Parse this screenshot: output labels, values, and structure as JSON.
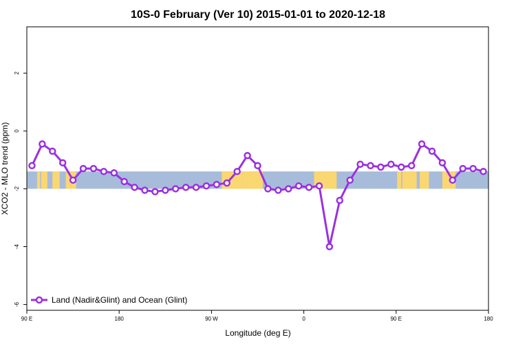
{
  "chart_data": {
    "type": "line",
    "title": "10S-0 February (Ver 10)   2015-01-01 to 2020-12-18",
    "xlabel": "Longitude (deg E)",
    "ylabel": "XCO2 - MLO trend (ppm)",
    "xlim": [
      90,
      540
    ],
    "ylim": [
      -6.2,
      3.6
    ],
    "x_ticks": [
      {
        "value": 90,
        "label": "90 E"
      },
      {
        "value": 180,
        "label": "180"
      },
      {
        "value": 270,
        "label": "90 W"
      },
      {
        "value": 360,
        "label": "0"
      },
      {
        "value": 450,
        "label": "90 E"
      },
      {
        "value": 540,
        "label": "180"
      }
    ],
    "y_ticks": [
      {
        "value": 2,
        "label": "2"
      },
      {
        "value": 0,
        "label": "0"
      },
      {
        "value": -2,
        "label": "-2"
      },
      {
        "value": -4,
        "label": "-4"
      },
      {
        "value": -6,
        "label": "-6"
      }
    ],
    "legend": {
      "position": "bottom-left",
      "entries": [
        "Land (Nadir&Glint) and Ocean (Glint)"
      ]
    },
    "band": {
      "y_range": [
        -2.0,
        -1.4
      ],
      "ocean_color": "#a7bcdb",
      "land_color": "#fbd772"
    },
    "land_segments": [
      [
        100,
        103
      ],
      [
        104,
        110
      ],
      [
        115,
        122
      ],
      [
        128,
        138
      ],
      [
        280,
        300
      ],
      [
        300,
        320
      ],
      [
        370,
        392
      ],
      [
        451,
        455
      ],
      [
        456,
        470
      ],
      [
        473,
        482
      ],
      [
        495,
        508
      ]
    ],
    "series": [
      {
        "name": "Land (Nadir&Glint) and Ocean (Glint)",
        "color": "#9b30e0",
        "x": [
          95,
          105,
          115,
          125,
          135,
          145,
          155,
          165,
          175,
          185,
          195,
          205,
          215,
          225,
          235,
          245,
          255,
          265,
          275,
          285,
          295,
          305,
          315,
          325,
          335,
          345,
          355,
          365,
          375,
          385,
          395,
          405,
          415,
          425,
          435,
          445,
          455,
          465,
          475,
          485,
          495,
          505,
          515,
          525,
          535
        ],
        "y": [
          -1.2,
          -0.45,
          -0.7,
          -1.1,
          -1.7,
          -1.3,
          -1.3,
          -1.4,
          -1.45,
          -1.75,
          -1.95,
          -2.05,
          -2.1,
          -2.05,
          -2.0,
          -1.95,
          -1.95,
          -1.9,
          -1.85,
          -1.8,
          -1.4,
          -0.85,
          -1.2,
          -2.0,
          -2.05,
          -2.0,
          -1.9,
          -1.95,
          -1.9,
          -4.0,
          -2.4,
          -1.7,
          -1.15,
          -1.2,
          -1.25,
          -1.15,
          -1.25,
          -1.2,
          -0.45,
          -0.7,
          -1.1,
          -1.7,
          -1.3,
          -1.3,
          -1.4
        ]
      }
    ]
  }
}
